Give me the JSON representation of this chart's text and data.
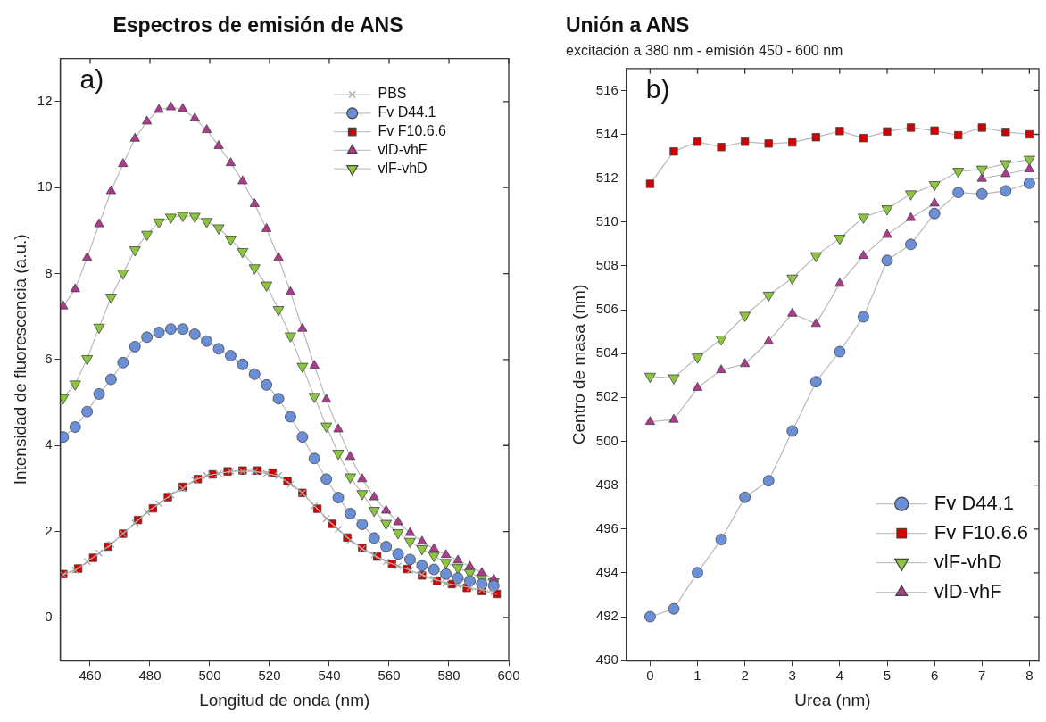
{
  "chart_data": [
    {
      "type": "line",
      "title": "Espectros de emisión de ANS",
      "xlabel": "Longitud de onda (nm)",
      "ylabel": "Intensidad de fluorescencia (a.u.)",
      "annotations": [
        "a)"
      ],
      "xlim": [
        450,
        600
      ],
      "xticks": [
        460,
        480,
        500,
        520,
        540,
        560,
        580,
        600
      ],
      "ylim": [
        -1,
        13
      ],
      "yticks": [
        0,
        2,
        4,
        6,
        8,
        10,
        12
      ],
      "grid": false,
      "legend": "top right",
      "series": [
        {
          "name": "PBS",
          "color": "#a0a0a0",
          "marker": "cross",
          "x": [
            451,
            455,
            459,
            463,
            467,
            471,
            475,
            479,
            483,
            487,
            491,
            495,
            499,
            503,
            507,
            511,
            515,
            519,
            523,
            527,
            531,
            535,
            539,
            543,
            547,
            551,
            555,
            559,
            563,
            567,
            571,
            575,
            579,
            583,
            587,
            591,
            595
          ],
          "values": [
            1.0,
            1.1,
            1.3,
            1.5,
            1.7,
            1.95,
            2.2,
            2.45,
            2.65,
            2.85,
            3.0,
            3.2,
            3.3,
            3.35,
            3.4,
            3.4,
            3.4,
            3.35,
            3.3,
            3.1,
            2.9,
            2.6,
            2.3,
            2.05,
            1.8,
            1.6,
            1.45,
            1.3,
            1.2,
            1.1,
            1.0,
            0.9,
            0.8,
            0.75,
            0.7,
            0.65,
            0.6
          ]
        },
        {
          "name": "Fv D44.1",
          "color": "#6a8fd6",
          "marker": "circle",
          "x": [
            451,
            455,
            459,
            463,
            467,
            471,
            475,
            479,
            483,
            487,
            491,
            495,
            499,
            503,
            507,
            511,
            515,
            519,
            523,
            527,
            531,
            535,
            539,
            543,
            547,
            551,
            555,
            559,
            563,
            567,
            571,
            575,
            579,
            583,
            587,
            591,
            595
          ],
          "values": [
            4.2,
            4.43,
            4.79,
            5.2,
            5.54,
            5.93,
            6.3,
            6.52,
            6.63,
            6.71,
            6.71,
            6.59,
            6.43,
            6.25,
            6.09,
            5.89,
            5.66,
            5.41,
            5.09,
            4.67,
            4.2,
            3.7,
            3.22,
            2.79,
            2.42,
            2.17,
            1.85,
            1.65,
            1.48,
            1.35,
            1.21,
            1.12,
            1.01,
            0.92,
            0.85,
            0.78,
            0.74
          ]
        },
        {
          "name": "Fv F10.6.6",
          "color": "#d40000",
          "marker": "square",
          "x": [
            451,
            456,
            461,
            466,
            471,
            476,
            481,
            486,
            491,
            496,
            501,
            506,
            511,
            516,
            521,
            526,
            531,
            536,
            541,
            546,
            551,
            556,
            561,
            566,
            571,
            576,
            581,
            586,
            591,
            596
          ],
          "values": [
            1.01,
            1.14,
            1.39,
            1.65,
            1.95,
            2.27,
            2.54,
            2.8,
            3.04,
            3.22,
            3.33,
            3.4,
            3.42,
            3.42,
            3.37,
            3.18,
            2.9,
            2.53,
            2.18,
            1.86,
            1.62,
            1.42,
            1.25,
            1.13,
            0.98,
            0.85,
            0.78,
            0.69,
            0.62,
            0.55
          ]
        },
        {
          "name": "vlD-vhF",
          "color": "#b0388e",
          "marker": "triangle",
          "x": [
            451,
            455,
            459,
            463,
            467,
            471,
            475,
            479,
            483,
            487,
            491,
            495,
            499,
            503,
            507,
            511,
            515,
            519,
            523,
            527,
            531,
            535,
            539,
            543,
            547,
            551,
            555,
            559,
            563,
            567,
            571,
            575,
            579,
            583,
            587,
            591,
            595
          ],
          "values": [
            7.24,
            7.64,
            8.37,
            9.15,
            9.92,
            10.55,
            11.14,
            11.54,
            11.81,
            11.87,
            11.83,
            11.61,
            11.34,
            10.97,
            10.57,
            10.15,
            9.62,
            9.04,
            8.37,
            7.57,
            6.72,
            5.86,
            5.07,
            4.38,
            3.74,
            3.22,
            2.8,
            2.49,
            2.22,
            1.97,
            1.77,
            1.6,
            1.46,
            1.33,
            1.19,
            1.04,
            0.89
          ]
        },
        {
          "name": "vlF-vhD",
          "color": "#8cc63e",
          "marker": "triangle-down",
          "x": [
            451,
            455,
            459,
            463,
            467,
            471,
            475,
            479,
            483,
            487,
            491,
            495,
            499,
            503,
            507,
            511,
            515,
            519,
            523,
            527,
            531,
            535,
            539,
            543,
            547,
            551,
            555,
            559,
            563,
            567,
            571,
            575,
            579,
            583,
            587,
            591,
            595
          ],
          "values": [
            5.11,
            5.43,
            6.02,
            6.75,
            7.45,
            8.01,
            8.55,
            8.91,
            9.2,
            9.31,
            9.35,
            9.33,
            9.21,
            9.06,
            8.8,
            8.51,
            8.13,
            7.73,
            7.16,
            6.55,
            5.84,
            5.14,
            4.45,
            3.82,
            3.27,
            2.88,
            2.49,
            2.19,
            1.97,
            1.77,
            1.6,
            1.44,
            1.28,
            1.16,
            1.04,
            0.92,
            0.83
          ]
        }
      ]
    },
    {
      "type": "line",
      "title": "Unión a ANS",
      "subtitle": "excitación a 380 nm - emisión 450 - 600 nm",
      "xlabel": "Urea (nm)",
      "ylabel": "Centro de masa (nm)",
      "annotations": [
        "b)"
      ],
      "x": [
        0,
        0.5,
        1,
        1.5,
        2,
        2.5,
        3,
        3.5,
        4,
        4.5,
        5,
        5.5,
        6,
        6.5,
        7,
        7.5,
        8
      ],
      "xlim": [
        -0.5,
        8.2
      ],
      "xticks": [
        0,
        1,
        2,
        3,
        4,
        5,
        6,
        7,
        8
      ],
      "ylim": [
        490,
        517
      ],
      "yticks": [
        490,
        492,
        494,
        496,
        498,
        500,
        502,
        504,
        506,
        508,
        510,
        512,
        514,
        516
      ],
      "grid": false,
      "legend": "bottom right",
      "series": [
        {
          "name": "Fv D44.1",
          "color": "#6a8fd6",
          "marker": "circle",
          "values": [
            492.0,
            492.36,
            494.01,
            495.52,
            497.45,
            498.2,
            500.47,
            502.72,
            504.09,
            505.68,
            508.25,
            508.98,
            510.39,
            511.35,
            511.28,
            511.42,
            511.77
          ]
        },
        {
          "name": "Fv F10.6.6",
          "color": "#d40000",
          "marker": "square",
          "values": [
            511.74,
            513.22,
            513.66,
            513.42,
            513.66,
            513.58,
            513.63,
            513.87,
            514.15,
            513.83,
            514.13,
            514.31,
            514.17,
            513.96,
            514.31,
            514.11,
            514.0
          ]
        },
        {
          "name": "vlF-vhD",
          "color": "#8cc63e",
          "marker": "triangle-down",
          "values": [
            502.96,
            502.89,
            503.84,
            504.66,
            505.74,
            506.66,
            507.44,
            508.46,
            509.26,
            510.22,
            510.6,
            511.28,
            511.7,
            512.31,
            512.41,
            512.66,
            512.86
          ]
        },
        {
          "name": "vlD-vhF",
          "color": "#b0388e",
          "marker": "triangle",
          "values": [
            500.89,
            500.99,
            502.44,
            503.25,
            503.53,
            504.56,
            505.83,
            505.36,
            507.19,
            508.46,
            509.42,
            510.19,
            510.85,
            null,
            511.98,
            512.19,
            512.41
          ]
        }
      ]
    }
  ]
}
